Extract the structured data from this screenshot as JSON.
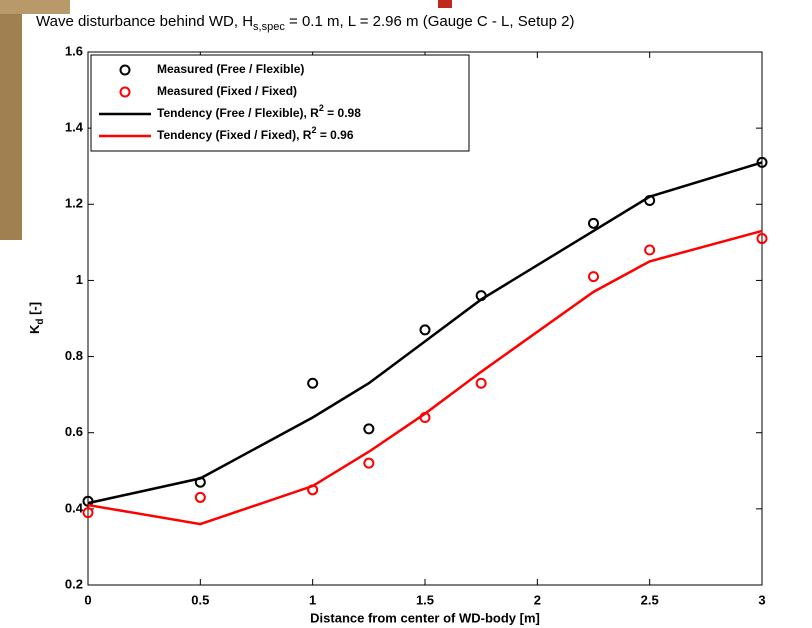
{
  "chart_data": {
    "type": "line",
    "title_parts": [
      "Wave disturbance behind WD, H",
      "s,spec",
      " = 0.1 m, L = 2.96 m (Gauge C - L, Setup 2)"
    ],
    "xlabel": "Distance from center of WD-body [m]",
    "ylabel_parts": [
      "K",
      "d",
      " [-]"
    ],
    "xlim": [
      0,
      3
    ],
    "ylim": [
      0.2,
      1.6
    ],
    "xticks": [
      0,
      0.5,
      1,
      1.5,
      2,
      2.5,
      3
    ],
    "yticks": [
      0.2,
      0.4,
      0.6,
      0.8,
      1,
      1.2,
      1.4,
      1.6
    ],
    "legend": "upper left",
    "series": [
      {
        "name_parts": [
          "Measured (Free / Flexible)"
        ],
        "style": "markers",
        "color": "#000000",
        "x": [
          0,
          0.5,
          1,
          1.25,
          1.5,
          1.75,
          2.25,
          2.5,
          3
        ],
        "values": [
          0.42,
          0.47,
          0.73,
          0.61,
          0.87,
          0.96,
          1.15,
          1.21,
          1.31
        ]
      },
      {
        "name_parts": [
          "Measured (Fixed / Fixed)"
        ],
        "style": "markers",
        "color": "#ff0000",
        "x": [
          0,
          0.5,
          1,
          1.25,
          1.5,
          1.75,
          2.25,
          2.5,
          3
        ],
        "values": [
          0.39,
          0.43,
          0.45,
          0.52,
          0.64,
          0.73,
          1.01,
          1.08,
          1.11
        ]
      },
      {
        "name_parts": [
          "Tendency (Free / Flexible), R",
          "2",
          " = 0.98"
        ],
        "style": "line",
        "color": "#000000",
        "x": [
          0,
          0.5,
          1,
          1.25,
          1.5,
          1.75,
          2.25,
          2.5,
          3
        ],
        "values": [
          0.415,
          0.48,
          0.64,
          0.73,
          0.84,
          0.95,
          1.13,
          1.22,
          1.31
        ]
      },
      {
        "name_parts": [
          "Tendency (Fixed / Fixed), R",
          "2",
          " = 0.96"
        ],
        "style": "line",
        "color": "#ff0000",
        "x": [
          0,
          0.5,
          1,
          1.25,
          1.5,
          1.75,
          2.25,
          2.5,
          3
        ],
        "values": [
          0.41,
          0.36,
          0.46,
          0.55,
          0.65,
          0.76,
          0.97,
          1.05,
          1.13
        ]
      }
    ]
  }
}
